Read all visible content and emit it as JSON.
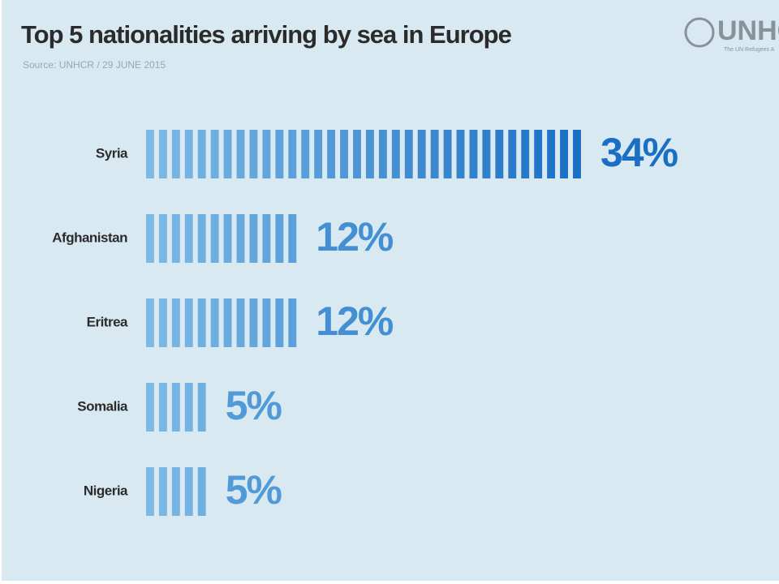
{
  "chart_data": {
    "type": "bar",
    "orientation": "horizontal",
    "title": "Top 5 nationalities arriving by sea in Europe",
    "subtitle": "Source: UNHCR / 29 JUNE 2015",
    "logo": "UNHC",
    "logo_subtitle": "The UN Refugees A",
    "categories": [
      "Syria",
      "Afghanistan",
      "Eritrea",
      "Somalia",
      "Nigeria"
    ],
    "values": [
      34,
      12,
      12,
      5,
      5
    ],
    "value_labels": [
      "34%",
      "12%",
      "12%",
      "5%",
      "5%"
    ],
    "color_range": [
      "#7fbbe6",
      "#1a6fc4"
    ]
  }
}
